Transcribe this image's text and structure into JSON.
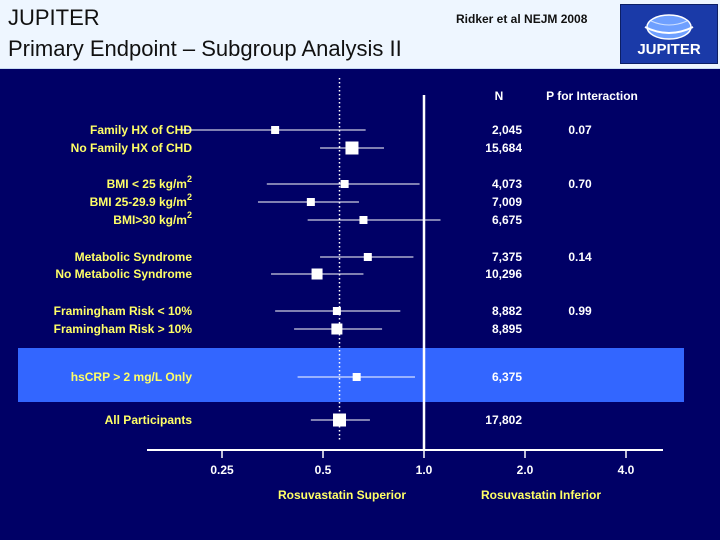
{
  "header": {
    "title_line1": "JUPITER",
    "title_line2": "Primary Endpoint – Subgroup Analysis II",
    "citation": "Ridker et al NEJM 2008",
    "logo_text": "JUPITER"
  },
  "colors": {
    "background": "#000066",
    "header_bg": "#eef6ff",
    "highlight_band": "#3366ff",
    "label_text": "#ffff66",
    "value_text": "#ffffff"
  },
  "chart_data": {
    "type": "forest",
    "columns": {
      "n": "N",
      "p": "P for Interaction"
    },
    "xaxis": {
      "scale": "log",
      "ticks": [
        0.25,
        0.5,
        1.0,
        2.0,
        4.0
      ],
      "tick_labels": [
        "0.25",
        "0.5",
        "1.0",
        "2.0",
        "4.0"
      ],
      "range": [
        0.25,
        4.0
      ],
      "reference_line": 1.0,
      "overall_effect_line": 0.56
    },
    "direction_labels": {
      "left": "Rosuvastatin Superior",
      "right": "Rosuvastatin Inferior"
    },
    "rows": [
      {
        "label": "Family HX of CHD",
        "sup": "",
        "hr": 0.36,
        "lo": 0.19,
        "hi": 0.67,
        "n": "2,045",
        "p": "0.07",
        "size": "small",
        "highlight": false
      },
      {
        "label": "No Family HX of CHD",
        "sup": "",
        "hr": 0.61,
        "lo": 0.49,
        "hi": 0.76,
        "n": "15,684",
        "p": "",
        "size": "large",
        "highlight": false
      },
      {
        "label": "BMI < 25 kg/m",
        "sup": "2",
        "hr": 0.58,
        "lo": 0.34,
        "hi": 0.97,
        "n": "4,073",
        "p": "0.70",
        "size": "small",
        "highlight": false
      },
      {
        "label": "BMI 25-29.9 kg/m",
        "sup": "2",
        "hr": 0.46,
        "lo": 0.32,
        "hi": 0.64,
        "n": "7,009",
        "p": "",
        "size": "small",
        "highlight": false
      },
      {
        "label": "BMI>30 kg/m",
        "sup": "2",
        "hr": 0.66,
        "lo": 0.45,
        "hi": 1.12,
        "n": "6,675",
        "p": "",
        "size": "small",
        "highlight": false
      },
      {
        "label": "Metabolic Syndrome",
        "sup": "",
        "hr": 0.68,
        "lo": 0.49,
        "hi": 0.93,
        "n": "7,375",
        "p": "0.14",
        "size": "small",
        "highlight": false
      },
      {
        "label": "No Metabolic Syndrome",
        "sup": "",
        "hr": 0.48,
        "lo": 0.35,
        "hi": 0.66,
        "n": "10,296",
        "p": "",
        "size": "medium",
        "highlight": false
      },
      {
        "label": "Framingham Risk < 10%",
        "sup": "",
        "hr": 0.55,
        "lo": 0.36,
        "hi": 0.85,
        "n": "8,882",
        "p": "0.99",
        "size": "small",
        "highlight": false
      },
      {
        "label": "Framingham Risk > 10%",
        "sup": "",
        "hr": 0.55,
        "lo": 0.41,
        "hi": 0.75,
        "n": "8,895",
        "p": "",
        "size": "medium",
        "highlight": false
      },
      {
        "label": "hsCRP > 2 mg/L Only",
        "sup": "",
        "hr": 0.63,
        "lo": 0.42,
        "hi": 0.94,
        "n": "6,375",
        "p": "",
        "size": "small",
        "highlight": true
      },
      {
        "label": "All Participants",
        "sup": "",
        "hr": 0.56,
        "lo": 0.46,
        "hi": 0.69,
        "n": "17,802",
        "p": "",
        "size": "large",
        "highlight": false
      }
    ]
  }
}
